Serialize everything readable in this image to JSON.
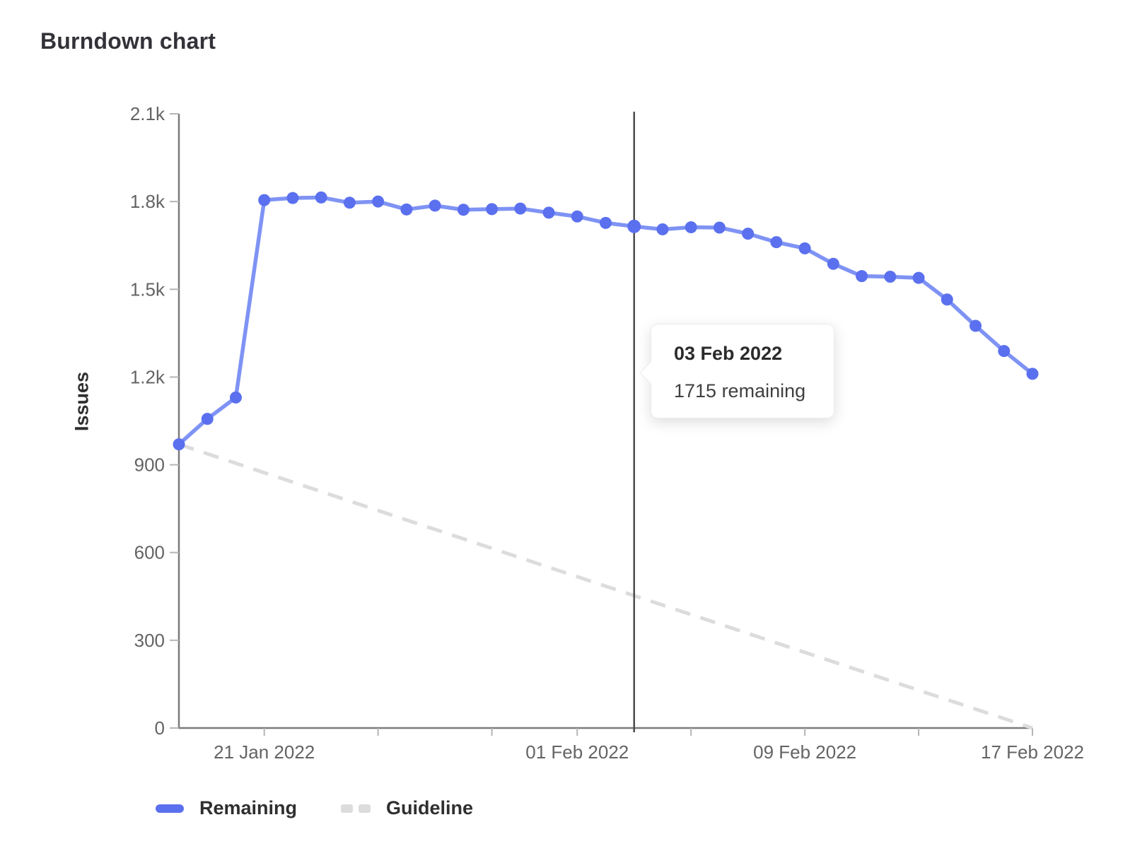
{
  "title": "Burndown chart",
  "tooltip": {
    "title": "03 Feb 2022",
    "value_text": "1715 remaining"
  },
  "legend": {
    "remaining_label": "Remaining",
    "guideline_label": "Guideline"
  },
  "chart_data": {
    "type": "line",
    "title": "Burndown chart",
    "xlabel": "",
    "ylabel": "Issues",
    "ylim": [
      0,
      2100
    ],
    "grid": false,
    "legend_position": "bottom",
    "y_ticks": [
      {
        "value": 2100,
        "label": "2.1k"
      },
      {
        "value": 1800,
        "label": "1.8k"
      },
      {
        "value": 1500,
        "label": "1.5k"
      },
      {
        "value": 1200,
        "label": "1.2k"
      },
      {
        "value": 900,
        "label": "900"
      },
      {
        "value": 600,
        "label": "600"
      },
      {
        "value": 300,
        "label": "300"
      },
      {
        "value": 0,
        "label": "0"
      }
    ],
    "x_axis": {
      "start_date": "18 Jan 2022",
      "end_date": "17 Feb 2022",
      "day_range": [
        0,
        30
      ],
      "tick_days": [
        3,
        7,
        11,
        14,
        18,
        22,
        26,
        30
      ],
      "labeled_ticks": [
        {
          "day": 3,
          "label": "21 Jan 2022"
        },
        {
          "day": 14,
          "label": "01 Feb 2022"
        },
        {
          "day": 22,
          "label": "09 Feb 2022"
        },
        {
          "day": 30,
          "label": "17 Feb 2022"
        }
      ]
    },
    "series": [
      {
        "name": "Remaining",
        "style": "solid-with-points",
        "dates": [
          "18 Jan 2022",
          "19 Jan 2022",
          "20 Jan 2022",
          "21 Jan 2022",
          "22 Jan 2022",
          "23 Jan 2022",
          "24 Jan 2022",
          "25 Jan 2022",
          "26 Jan 2022",
          "27 Jan 2022",
          "28 Jan 2022",
          "29 Jan 2022",
          "30 Jan 2022",
          "31 Jan 2022",
          "01 Feb 2022",
          "02 Feb 2022",
          "03 Feb 2022",
          "04 Feb 2022",
          "05 Feb 2022",
          "06 Feb 2022",
          "07 Feb 2022",
          "08 Feb 2022",
          "09 Feb 2022",
          "10 Feb 2022",
          "11 Feb 2022",
          "12 Feb 2022",
          "13 Feb 2022",
          "14 Feb 2022",
          "15 Feb 2022",
          "16 Feb 2022",
          "17 Feb 2022"
        ],
        "values": [
          970,
          1057,
          1130,
          1805,
          1812,
          1814,
          1796,
          1800,
          1773,
          1786,
          1772,
          1774,
          1776,
          1762,
          1749,
          1727,
          1715,
          1705,
          1712,
          1711,
          1690,
          1661,
          1640,
          1587,
          1545,
          1543,
          1539,
          1465,
          1375,
          1289,
          1211
        ]
      },
      {
        "name": "Guideline",
        "style": "dashed",
        "points": [
          {
            "day": 0,
            "value": 970
          },
          {
            "day": 30,
            "value": 0
          }
        ]
      }
    ],
    "today_marker": {
      "day": 16,
      "date": "03 Feb 2022",
      "value": 1715
    },
    "colors": {
      "remaining_point": "#5b70ee",
      "remaining_line": "#7f93f4",
      "guideline": "#dcdcdc",
      "today_line": "#4b4b4b",
      "axis": "#7a7a7a",
      "tick": "#b5b5b5",
      "axis_text": "#646464"
    }
  }
}
